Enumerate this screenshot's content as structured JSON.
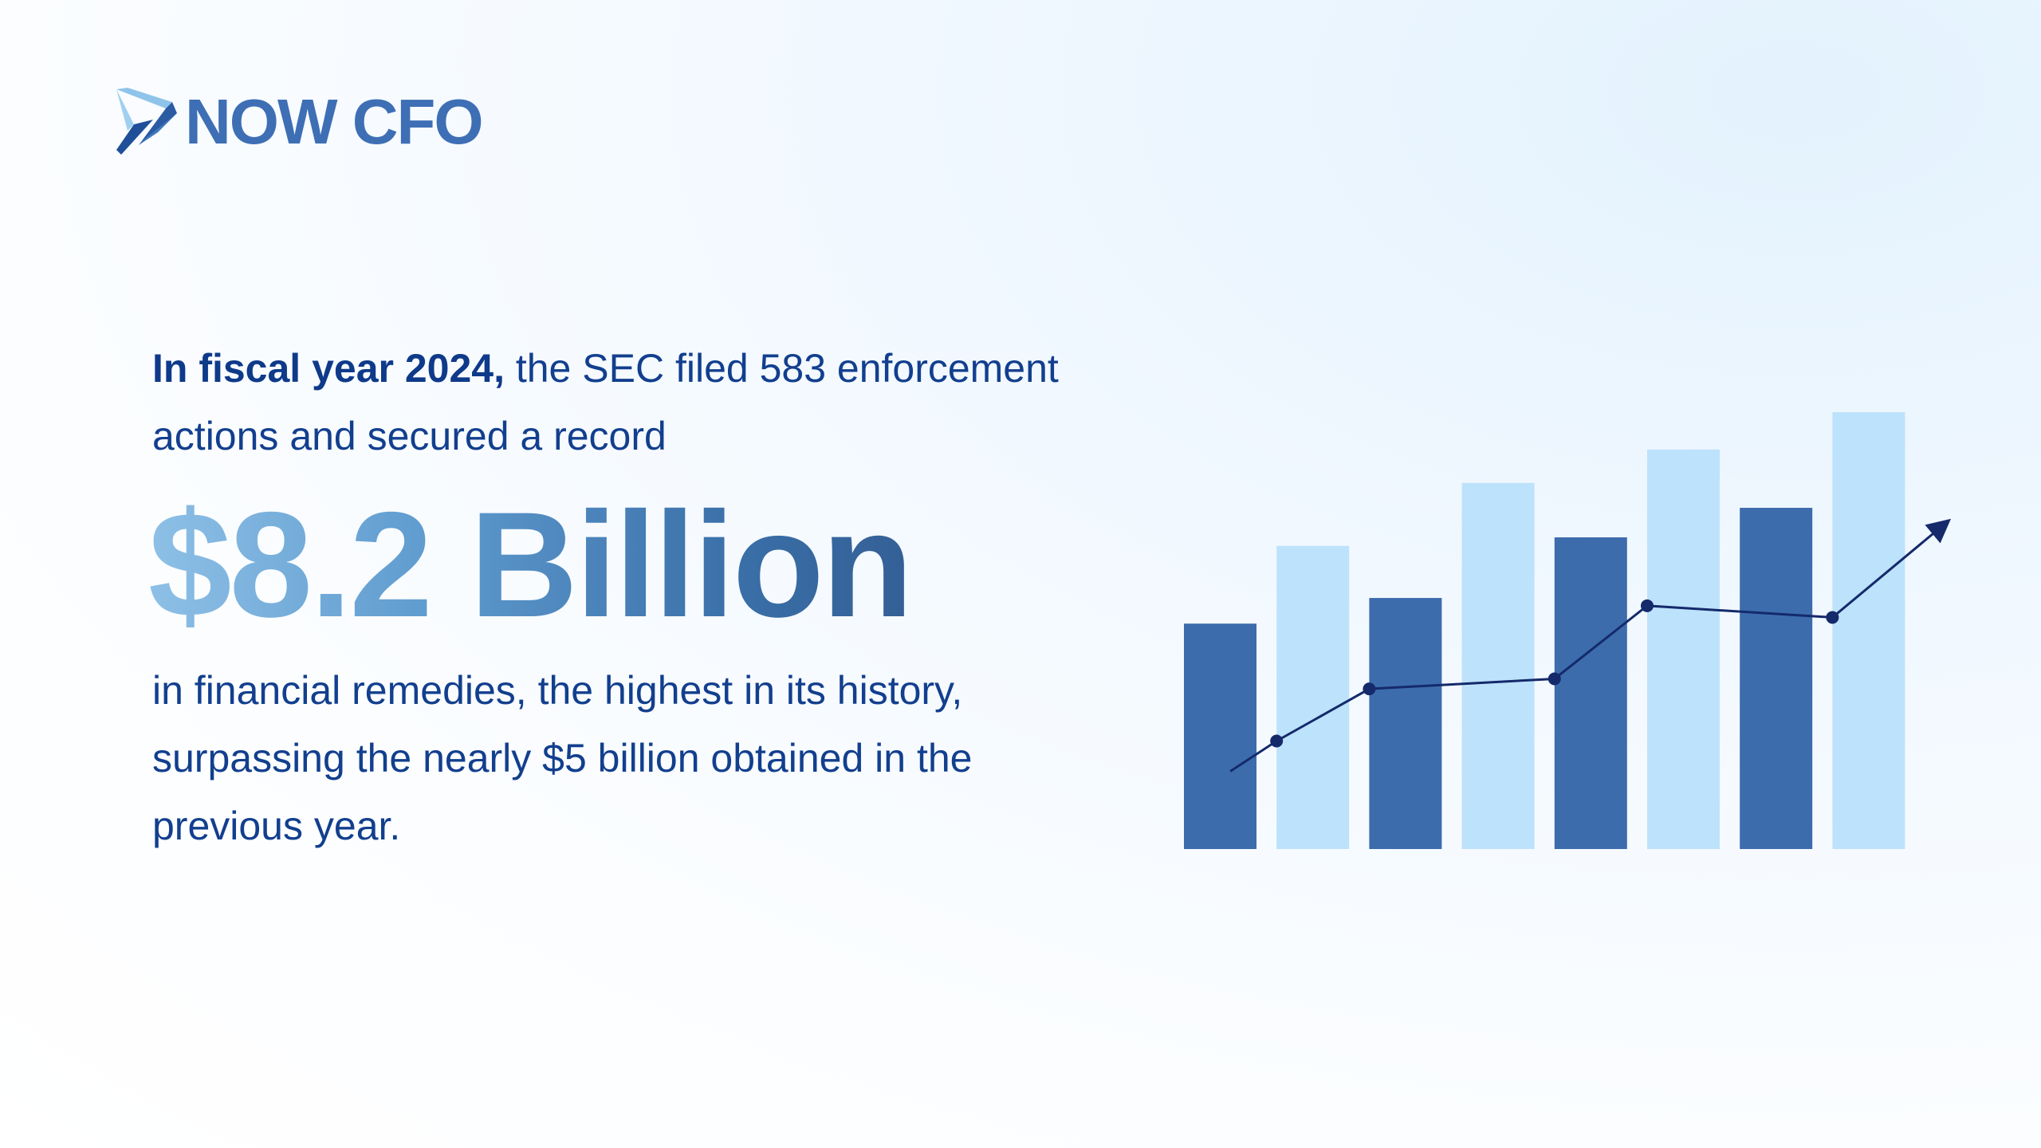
{
  "brand": {
    "name": "NOW CFO"
  },
  "headline": {
    "lead_bold": "In fiscal year 2024,",
    "lead_rest": " the SEC filed 583 enforcement actions and secured a record",
    "amount": "$8.2 Billion",
    "tail": "in financial remedies, the highest in its history, surpassing the nearly $5 billion obtained in the previous year."
  },
  "colors": {
    "text": "#123f8e",
    "bar_dark": "#3d6cad",
    "bar_light": "#bde2fb",
    "trend_line": "#142a6b"
  },
  "chart_data": {
    "type": "bar",
    "bars": [
      {
        "value": 290,
        "tone": "dark"
      },
      {
        "value": 390,
        "tone": "light"
      },
      {
        "value": 323,
        "tone": "dark"
      },
      {
        "value": 471,
        "tone": "light"
      },
      {
        "value": 401,
        "tone": "dark"
      },
      {
        "value": 514,
        "tone": "light"
      },
      {
        "value": 439,
        "tone": "dark"
      },
      {
        "value": 562,
        "tone": "light"
      }
    ],
    "ylim": [
      0,
      600
    ],
    "trend": [
      {
        "x": 0.5,
        "y": 100
      },
      {
        "x": 1.0,
        "y": 139
      },
      {
        "x": 2.0,
        "y": 206
      },
      {
        "x": 4.0,
        "y": 219
      },
      {
        "x": 5.0,
        "y": 313
      },
      {
        "x": 7.0,
        "y": 298
      },
      {
        "x": 8.2,
        "y": 417
      }
    ]
  }
}
